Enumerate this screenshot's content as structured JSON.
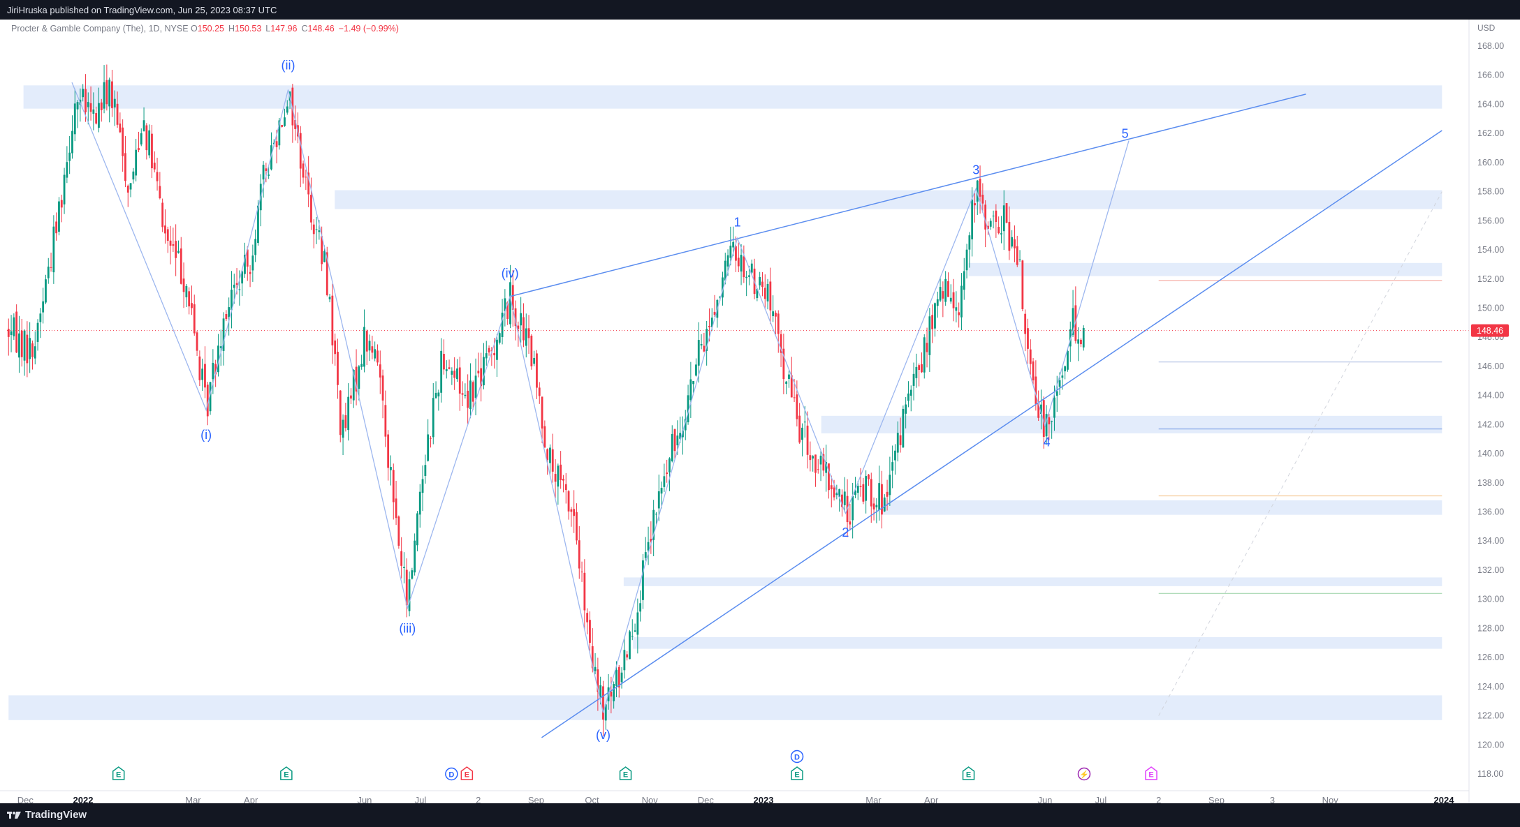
{
  "header": {
    "publisher_line": "JiriHruska published on TradingView.com, Jun 25, 2023 08:37 UTC"
  },
  "legend": {
    "symbol": "Procter & Gamble Company (The), 1D, NYSE",
    "open_label": "O",
    "open": "150.25",
    "high_label": "H",
    "high": "150.53",
    "low_label": "L",
    "low": "147.96",
    "close_label": "C",
    "close": "148.46",
    "change": "−1.49 (−0.99%)"
  },
  "footer": {
    "brand": "TradingView"
  },
  "colors": {
    "up": "#089981",
    "down": "#f23645",
    "wave_line": "#5b8def",
    "zone_fill": "#e3ecfb",
    "label": "#2962ff",
    "price_tag": "#f23645"
  },
  "chart_data": {
    "type": "candlestick",
    "currency": "USD",
    "ylim": [
      117,
      169
    ],
    "y_ticks": [
      "118.00",
      "120.00",
      "122.00",
      "124.00",
      "126.00",
      "128.00",
      "130.00",
      "132.00",
      "134.00",
      "136.00",
      "138.00",
      "140.00",
      "142.00",
      "144.00",
      "146.00",
      "148.00",
      "150.00",
      "152.00",
      "154.00",
      "156.00",
      "158.00",
      "160.00",
      "162.00",
      "164.00",
      "166.00",
      "168.00"
    ],
    "x_ticks": [
      {
        "label": "Dec",
        "date": "2021-12-01"
      },
      {
        "label": "2022",
        "date": "2022-01-01",
        "bold": true
      },
      {
        "label": "Mar",
        "date": "2022-03-01"
      },
      {
        "label": "Apr",
        "date": "2022-04-01"
      },
      {
        "label": "Jun",
        "date": "2022-06-01"
      },
      {
        "label": "Jul",
        "date": "2022-07-01"
      },
      {
        "label": "2",
        "date": "2022-08-01"
      },
      {
        "label": "Sep",
        "date": "2022-09-01"
      },
      {
        "label": "Oct",
        "date": "2022-10-01"
      },
      {
        "label": "Nov",
        "date": "2022-11-01"
      },
      {
        "label": "Dec",
        "date": "2022-12-01"
      },
      {
        "label": "2023",
        "date": "2023-01-01",
        "bold": true
      },
      {
        "label": "Mar",
        "date": "2023-03-01"
      },
      {
        "label": "Apr",
        "date": "2023-04-01"
      },
      {
        "label": "Jun",
        "date": "2023-06-01"
      },
      {
        "label": "Jul",
        "date": "2023-07-01"
      },
      {
        "label": "2",
        "date": "2023-08-01"
      },
      {
        "label": "Sep",
        "date": "2023-09-01"
      },
      {
        "label": "3",
        "date": "2023-10-01"
      },
      {
        "label": "Nov",
        "date": "2023-11-01"
      },
      {
        "label": "2024",
        "date": "2024-01-01",
        "bold": true
      }
    ],
    "price_path": [
      [
        "2021-11-22",
        148.5
      ],
      [
        "2021-12-05",
        147.0
      ],
      [
        "2021-12-18",
        156.0
      ],
      [
        "2021-12-28",
        164.5
      ],
      [
        "2022-01-07",
        163.0
      ],
      [
        "2022-01-15",
        165.3
      ],
      [
        "2022-01-26",
        158.0
      ],
      [
        "2022-02-02",
        163.5
      ],
      [
        "2022-02-14",
        155.0
      ],
      [
        "2022-02-25",
        152.0
      ],
      [
        "2022-03-08",
        143.0
      ],
      [
        "2022-03-18",
        150.0
      ],
      [
        "2022-03-31",
        153.0
      ],
      [
        "2022-04-08",
        159.0
      ],
      [
        "2022-04-21",
        164.9
      ],
      [
        "2022-05-02",
        157.5
      ],
      [
        "2022-05-12",
        152.0
      ],
      [
        "2022-05-20",
        141.0
      ],
      [
        "2022-06-01",
        148.0
      ],
      [
        "2022-06-09",
        146.0
      ],
      [
        "2022-06-17",
        136.0
      ],
      [
        "2022-06-24",
        129.5
      ],
      [
        "2022-07-01",
        138.0
      ],
      [
        "2022-07-13",
        147.0
      ],
      [
        "2022-07-25",
        144.0
      ],
      [
        "2022-08-05",
        146.0
      ],
      [
        "2022-08-18",
        150.8
      ],
      [
        "2022-08-29",
        147.0
      ],
      [
        "2022-09-09",
        139.0
      ],
      [
        "2022-09-21",
        136.0
      ],
      [
        "2022-09-30",
        126.0
      ],
      [
        "2022-10-07",
        122.2
      ],
      [
        "2022-10-15",
        124.5
      ],
      [
        "2022-10-26",
        130.0
      ],
      [
        "2022-11-06",
        137.0
      ],
      [
        "2022-11-17",
        142.0
      ],
      [
        "2022-11-28",
        147.0
      ],
      [
        "2022-12-08",
        151.0
      ],
      [
        "2022-12-16",
        154.2
      ],
      [
        "2022-12-23",
        152.5
      ],
      [
        "2023-01-03",
        151.0
      ],
      [
        "2023-01-10",
        147.0
      ],
      [
        "2023-01-20",
        142.0
      ],
      [
        "2023-01-28",
        139.5
      ],
      [
        "2023-02-08",
        137.5
      ],
      [
        "2023-02-15",
        136.0
      ],
      [
        "2023-02-25",
        138.0
      ],
      [
        "2023-03-08",
        136.3
      ],
      [
        "2023-03-16",
        142.0
      ],
      [
        "2023-03-28",
        147.0
      ],
      [
        "2023-04-06",
        151.0
      ],
      [
        "2023-04-16",
        150.5
      ],
      [
        "2023-04-25",
        158.0
      ],
      [
        "2023-05-03",
        155.5
      ],
      [
        "2023-05-11",
        156.0
      ],
      [
        "2023-05-19",
        152.0
      ],
      [
        "2023-05-26",
        143.5
      ],
      [
        "2023-06-01",
        142.0
      ],
      [
        "2023-06-09",
        145.0
      ],
      [
        "2023-06-16",
        149.0
      ],
      [
        "2023-06-23",
        148.46
      ]
    ],
    "last_price": "148.46",
    "wave_labels": [
      {
        "text": "(i)",
        "date": "2022-03-08",
        "price": 141.0
      },
      {
        "text": "(ii)",
        "date": "2022-04-21",
        "price": 166.4
      },
      {
        "text": "(iii)",
        "date": "2022-06-24",
        "price": 127.7
      },
      {
        "text": "(iv)",
        "date": "2022-08-18",
        "price": 152.1
      },
      {
        "text": "(v)",
        "date": "2022-10-07",
        "price": 120.4
      },
      {
        "text": "1",
        "date": "2022-12-18",
        "price": 155.6
      },
      {
        "text": "2",
        "date": "2023-02-14",
        "price": 134.3
      },
      {
        "text": "3",
        "date": "2023-04-25",
        "price": 159.2
      },
      {
        "text": "4",
        "date": "2023-06-02",
        "price": 140.5
      },
      {
        "text": "5",
        "date": "2023-07-14",
        "price": 161.7
      }
    ],
    "wave_path": [
      [
        "2021-12-26",
        165.5
      ],
      [
        "2022-03-08",
        143.0
      ],
      [
        "2022-04-21",
        165.0
      ],
      [
        "2022-06-24",
        129.4
      ],
      [
        "2022-08-18",
        150.8
      ],
      [
        "2022-10-07",
        122.2
      ],
      [
        "2022-12-18",
        154.8
      ],
      [
        "2023-02-14",
        135.9
      ],
      [
        "2023-04-25",
        158.2
      ],
      [
        "2023-06-01",
        141.9
      ],
      [
        "2023-07-16",
        161.5
      ]
    ],
    "trend_lines": [
      {
        "from": [
          "2022-08-18",
          150.8
        ],
        "to": [
          "2023-10-19",
          164.7
        ]
      },
      {
        "from": [
          "2022-09-04",
          120.5
        ],
        "to": [
          "2023-12-31",
          162.2
        ]
      }
    ],
    "zones": [
      {
        "from": "2021-11-30",
        "to": "2023-12-31",
        "low": 163.7,
        "high": 165.3
      },
      {
        "from": "2022-05-16",
        "to": "2023-12-31",
        "low": 156.8,
        "high": 158.1
      },
      {
        "from": "2023-04-21",
        "to": "2023-12-31",
        "low": 152.2,
        "high": 153.1
      },
      {
        "from": "2023-02-01",
        "to": "2023-12-31",
        "low": 141.4,
        "high": 142.6
      },
      {
        "from": "2023-03-06",
        "to": "2023-12-31",
        "low": 135.8,
        "high": 136.8
      },
      {
        "from": "2022-10-18",
        "to": "2023-12-31",
        "low": 130.9,
        "high": 131.5
      },
      {
        "from": "2022-10-23",
        "to": "2023-12-31",
        "low": 126.6,
        "high": 127.4
      },
      {
        "from": "2021-11-22",
        "to": "2023-12-31",
        "low": 121.7,
        "high": 123.4
      }
    ],
    "extension_lines": [
      {
        "from": "2023-08-01",
        "to": "2023-12-31",
        "price": 151.9,
        "color": "#f7b0a8"
      },
      {
        "from": "2023-08-01",
        "to": "2023-12-31",
        "price": 146.3,
        "color": "#b7c6e6"
      },
      {
        "from": "2023-08-01",
        "to": "2023-12-31",
        "price": 141.7,
        "color": "#8aa9e8"
      },
      {
        "from": "2023-08-01",
        "to": "2023-12-31",
        "price": 137.1,
        "color": "#f5c58e"
      },
      {
        "from": "2023-08-01",
        "to": "2023-12-31",
        "price": 130.4,
        "color": "#a6d7b0"
      }
    ],
    "dashed_line": {
      "from": [
        "2023-08-01",
        122.0
      ],
      "to": [
        "2023-12-31",
        158.0
      ]
    },
    "event_markers": [
      {
        "date": "2022-01-20",
        "letters": [
          "E"
        ],
        "color": "#089981"
      },
      {
        "date": "2022-04-20",
        "letters": [
          "E"
        ],
        "color": "#089981"
      },
      {
        "date": "2022-07-21",
        "letters": [
          "D",
          "E"
        ],
        "colors": [
          "#2962ff",
          "#f23645"
        ]
      },
      {
        "date": "2022-10-19",
        "letters": [
          "E"
        ],
        "color": "#089981"
      },
      {
        "date": "2023-01-19",
        "letters": [
          "D",
          "E"
        ],
        "colors": [
          "#2962ff",
          "#089981"
        ],
        "stacked": true
      },
      {
        "date": "2023-04-21",
        "letters": [
          "E"
        ],
        "color": "#089981"
      },
      {
        "date": "2023-06-22",
        "letters": [
          "⚡"
        ],
        "color": "#9c27b0",
        "round": true
      },
      {
        "date": "2023-07-28",
        "letters": [
          "E"
        ],
        "color": "#e040fb"
      }
    ]
  }
}
